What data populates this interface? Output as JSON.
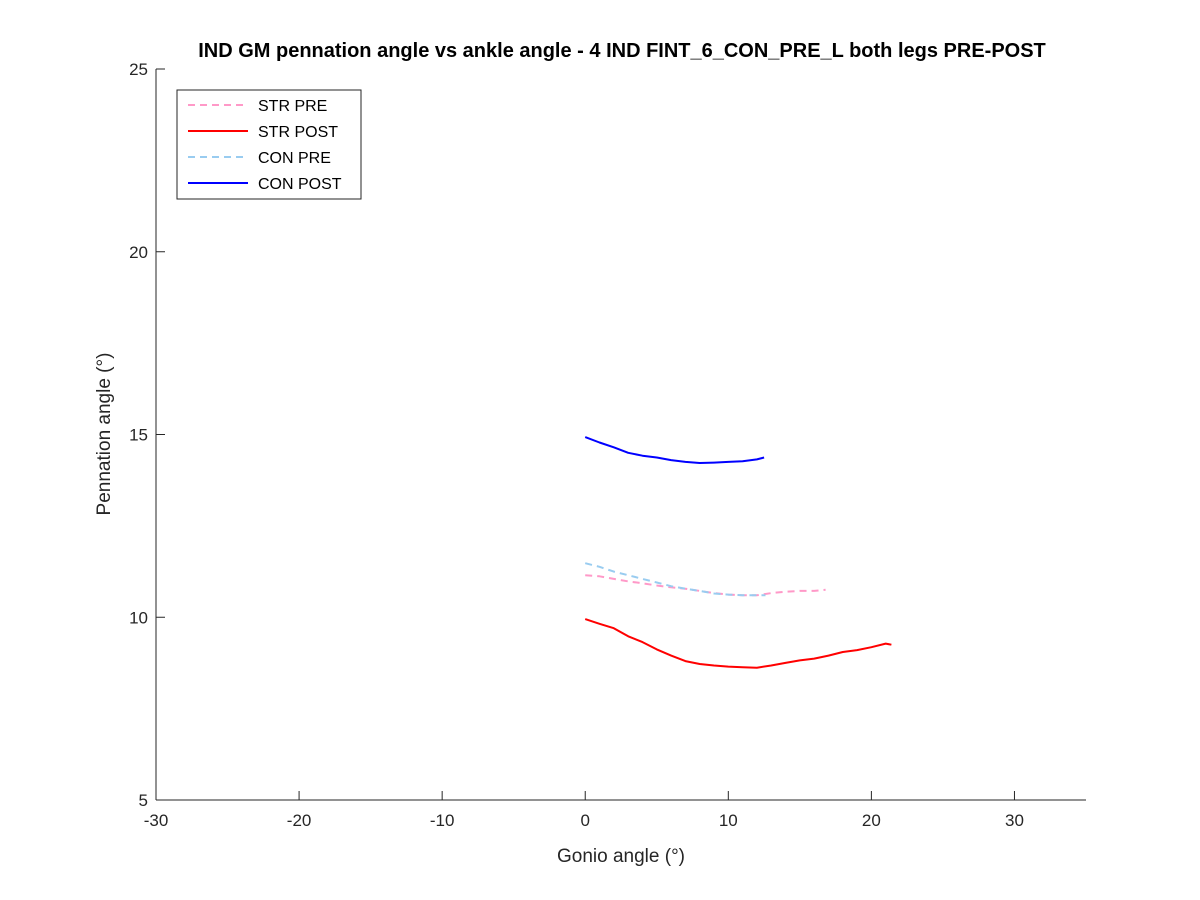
{
  "chart_data": {
    "type": "line",
    "title": "IND GM pennation angle vs ankle angle - 4 IND FINT_6_CON_PRE_L both legs PRE-POST",
    "xlabel": "Gonio angle (°)",
    "ylabel": "Pennation angle (°)",
    "xlim": [
      -30,
      35
    ],
    "ylim": [
      5,
      25
    ],
    "xticks": [
      -30,
      -20,
      -10,
      0,
      10,
      20,
      30
    ],
    "yticks": [
      5,
      10,
      15,
      20,
      25
    ],
    "grid": false,
    "legend_position": "top-left",
    "series": [
      {
        "name": "STR PRE",
        "color": "#ff99c8",
        "dash": "dashed",
        "x": [
          0,
          1,
          2,
          3,
          4,
          5,
          6,
          7,
          8,
          9,
          10,
          11,
          12,
          13,
          14,
          15,
          16,
          16.8
        ],
        "y": [
          11.15,
          11.12,
          11.05,
          10.98,
          10.93,
          10.87,
          10.82,
          10.78,
          10.72,
          10.66,
          10.62,
          10.6,
          10.6,
          10.66,
          10.7,
          10.72,
          10.72,
          10.75
        ]
      },
      {
        "name": "STR POST",
        "color": "#ff0000",
        "dash": "solid",
        "x": [
          0,
          1,
          2,
          3,
          4,
          5,
          6,
          7,
          8,
          9,
          10,
          11,
          12,
          13,
          14,
          15,
          16,
          17,
          18,
          19,
          20,
          21,
          21.4
        ],
        "y": [
          9.95,
          9.82,
          9.7,
          9.48,
          9.32,
          9.12,
          8.95,
          8.8,
          8.72,
          8.68,
          8.65,
          8.63,
          8.62,
          8.68,
          8.75,
          8.82,
          8.87,
          8.95,
          9.05,
          9.1,
          9.18,
          9.28,
          9.25
        ]
      },
      {
        "name": "CON PRE",
        "color": "#99ccf0",
        "dash": "dashed",
        "x": [
          0,
          1,
          2,
          3,
          4,
          5,
          6,
          7,
          8,
          9,
          10,
          11,
          12,
          12.6
        ],
        "y": [
          11.48,
          11.38,
          11.25,
          11.15,
          11.05,
          10.95,
          10.85,
          10.78,
          10.72,
          10.65,
          10.62,
          10.6,
          10.6,
          10.6
        ]
      },
      {
        "name": "CON POST",
        "color": "#0000ff",
        "dash": "solid",
        "x": [
          0,
          1,
          2,
          3,
          4,
          5,
          6,
          7,
          8,
          9,
          10,
          11,
          12,
          12.5
        ],
        "y": [
          14.93,
          14.78,
          14.65,
          14.5,
          14.42,
          14.37,
          14.3,
          14.25,
          14.22,
          14.23,
          14.25,
          14.27,
          14.32,
          14.37
        ]
      }
    ]
  }
}
